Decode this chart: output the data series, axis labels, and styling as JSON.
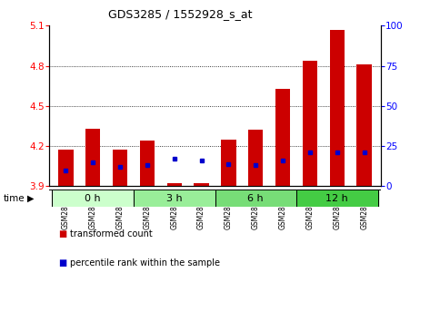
{
  "title": "GDS3285 / 1552928_s_at",
  "samples": [
    "GSM286031",
    "GSM286032",
    "GSM286033",
    "GSM286034",
    "GSM286035",
    "GSM286036",
    "GSM286037",
    "GSM286038",
    "GSM286039",
    "GSM286040",
    "GSM286041",
    "GSM286042"
  ],
  "transformed_count": [
    4.17,
    4.33,
    4.17,
    4.24,
    3.92,
    3.92,
    4.25,
    4.32,
    4.63,
    4.84,
    5.07,
    4.81
  ],
  "percentile_rank": [
    10,
    15,
    12,
    13,
    17,
    16,
    14,
    13,
    16,
    21,
    21,
    21
  ],
  "ymin": 3.9,
  "ymax": 5.1,
  "yticks": [
    3.9,
    4.2,
    4.5,
    4.8,
    5.1
  ],
  "right_yticks": [
    0,
    25,
    50,
    75,
    100
  ],
  "bar_color": "#cc0000",
  "percentile_color": "#0000cc",
  "groups": [
    {
      "label": "0 h",
      "start": 0,
      "end": 3,
      "color": "#ccffcc"
    },
    {
      "label": "3 h",
      "start": 3,
      "end": 6,
      "color": "#99ee99"
    },
    {
      "label": "6 h",
      "start": 6,
      "end": 9,
      "color": "#77dd77"
    },
    {
      "label": "12 h",
      "start": 9,
      "end": 12,
      "color": "#44cc44"
    }
  ],
  "bar_width": 0.55,
  "baseline": 3.9,
  "grid_lines": [
    4.2,
    4.5,
    4.8
  ]
}
